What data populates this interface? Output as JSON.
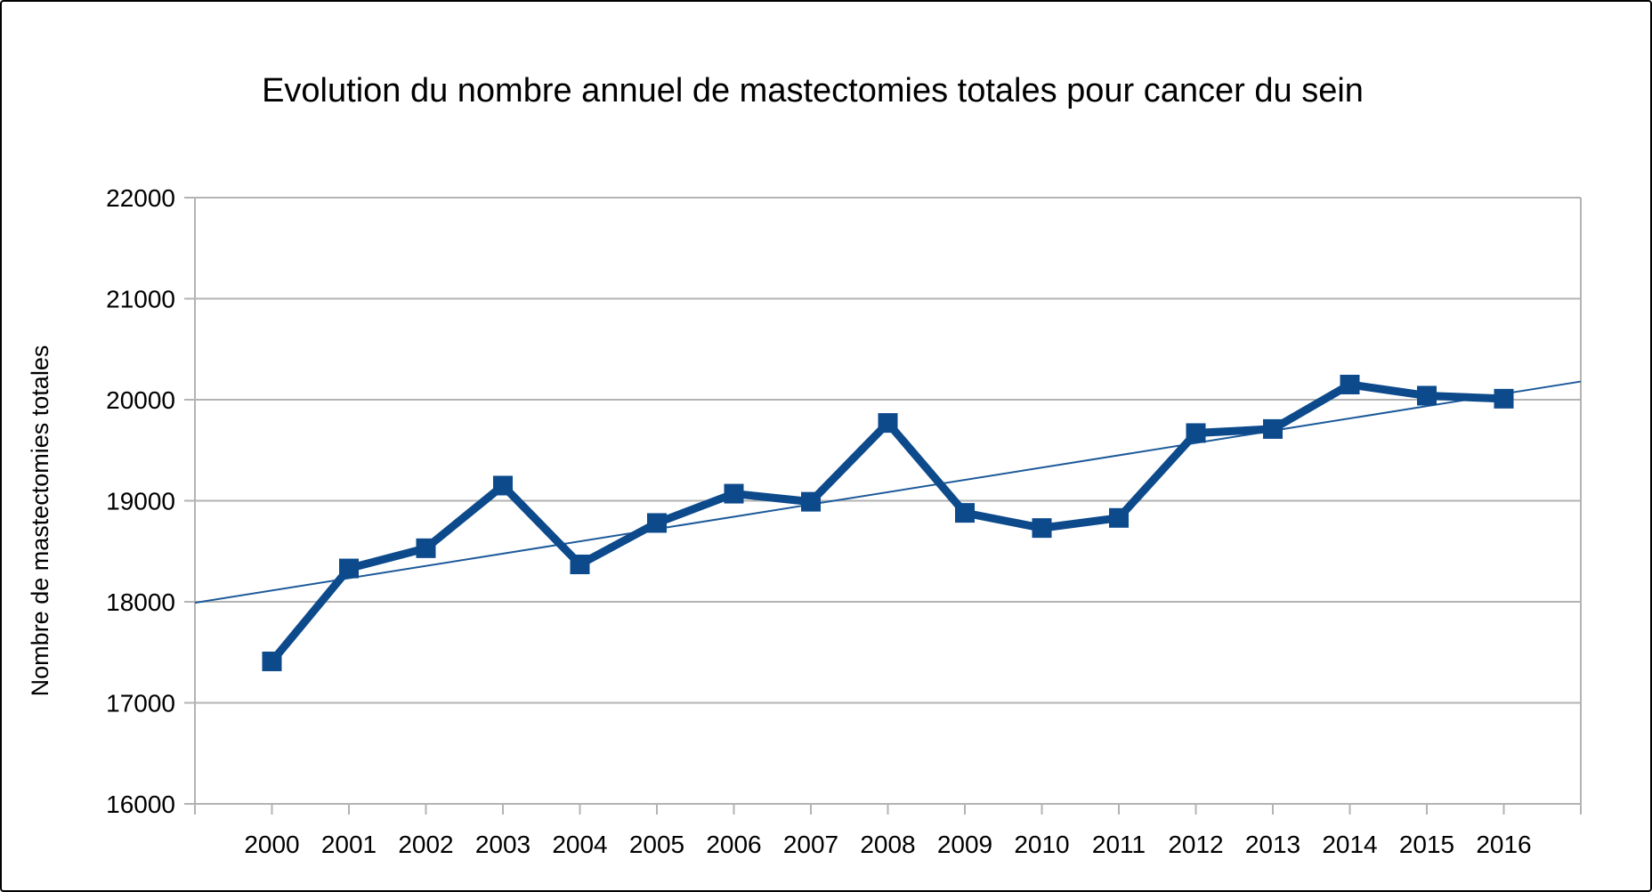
{
  "chart_data": {
    "type": "line",
    "title": "Evolution du nombre annuel de mastectomies totales pour cancer du sein",
    "xlabel": "",
    "ylabel": "Nombre de mastectomies totales",
    "categories": [
      "2000",
      "2001",
      "2002",
      "2003",
      "2004",
      "2005",
      "2006",
      "2007",
      "2008",
      "2009",
      "2010",
      "2011",
      "2012",
      "2013",
      "2014",
      "2015",
      "2016"
    ],
    "series": [
      {
        "values": [
          17410,
          18330,
          18530,
          19150,
          18370,
          18780,
          19070,
          18990,
          19770,
          18880,
          18730,
          18830,
          19670,
          19710,
          20150,
          20040,
          20010
        ],
        "color": "#0c4a8c",
        "marker": "square"
      }
    ],
    "trendline": {
      "type": "linear",
      "start": 17990,
      "end": 20180,
      "color": "#1c5a9a"
    },
    "ylim": [
      16000,
      22000
    ],
    "yticks": [
      16000,
      17000,
      18000,
      19000,
      20000,
      21000,
      22000
    ],
    "grid": true,
    "legend": "none"
  }
}
